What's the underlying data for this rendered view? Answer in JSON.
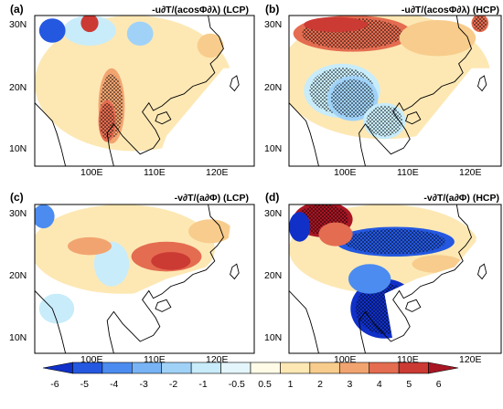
{
  "panels": [
    {
      "id": "a",
      "label": "(a)",
      "title": "-u∂T/(acosΦ∂λ) (LCP)"
    },
    {
      "id": "b",
      "label": "(b)",
      "title": "-u∂T/(acosΦ∂λ) (HCP)"
    },
    {
      "id": "c",
      "label": "(c)",
      "title": "-v∂T/(a∂Φ) (LCP)"
    },
    {
      "id": "d",
      "label": "(d)",
      "title": "-v∂T/(a∂Φ) (HCP)"
    }
  ],
  "lat_ticks": [
    "30N",
    "20N",
    "10N"
  ],
  "lon_ticks": [
    "100E",
    "110E",
    "120E"
  ],
  "colorbar": {
    "labels": [
      "-6",
      "-5",
      "-4",
      "-3",
      "-2",
      "-1",
      "-0.5",
      "0.5",
      "1",
      "2",
      "3",
      "4",
      "5",
      "6"
    ],
    "colors": [
      "#1030c8",
      "#2458e0",
      "#4c8cf0",
      "#78b4f5",
      "#a0d2f8",
      "#c8ecfa",
      "#e4f6fc",
      "#fffbe6",
      "#fde8b4",
      "#f8cc8c",
      "#f2a470",
      "#e46c50",
      "#cc3a34",
      "#a81624"
    ]
  }
}
